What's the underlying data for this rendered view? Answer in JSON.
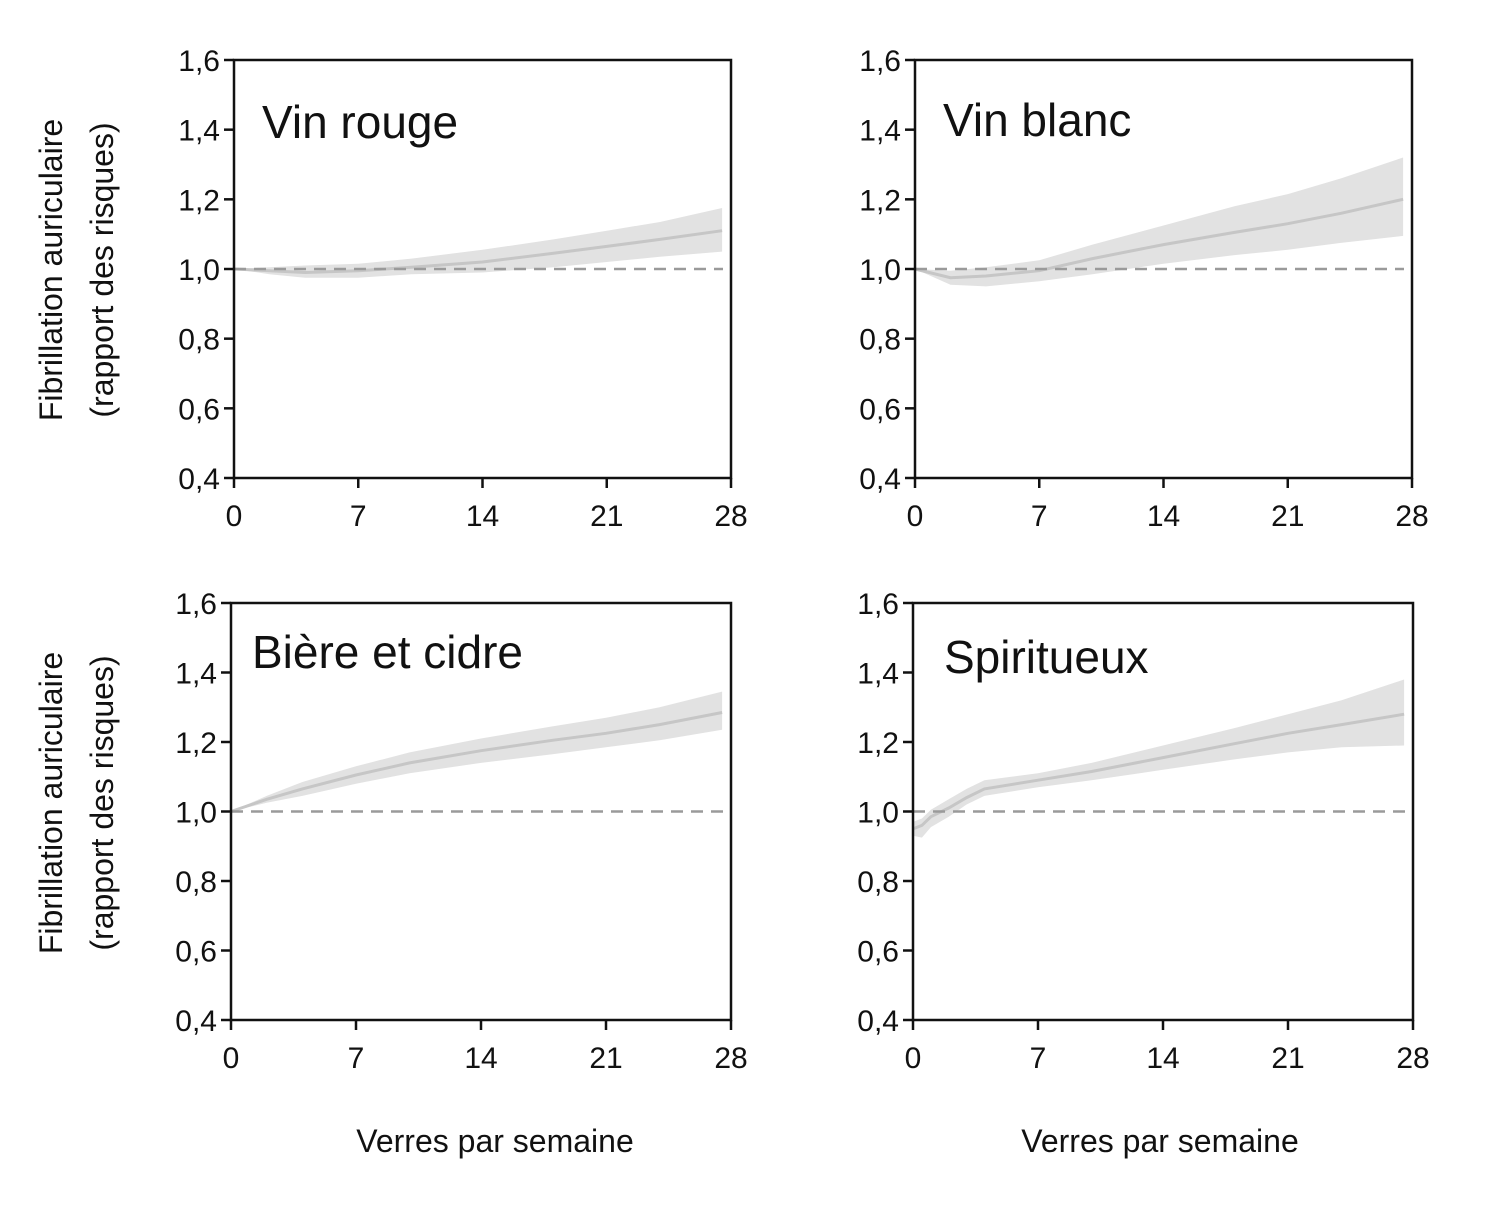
{
  "figure": {
    "x_axis_label": "Verres par semaine",
    "y_axis_label_line1": "Fibrillation auriculaire",
    "y_axis_label_line2": "(rapport des risques)"
  },
  "chart_data": [
    {
      "type": "line",
      "title": "Vin rouge",
      "xlim": [
        0,
        28
      ],
      "ylim": [
        0.4,
        1.6
      ],
      "x_ticks": [
        "0",
        "7",
        "14",
        "21",
        "28"
      ],
      "y_ticks": [
        "0,4",
        "0,6",
        "0,8",
        "1,0",
        "1,2",
        "1,4",
        "1,6"
      ],
      "reference_line": 1.0,
      "x": [
        0,
        2,
        4,
        7,
        10,
        14,
        18,
        21,
        24,
        27.5
      ],
      "y": [
        1.0,
        0.995,
        0.99,
        0.995,
        1.005,
        1.02,
        1.045,
        1.065,
        1.085,
        1.11
      ],
      "ci_lower": [
        1.0,
        0.985,
        0.975,
        0.975,
        0.985,
        0.99,
        1.005,
        1.02,
        1.035,
        1.05
      ],
      "ci_upper": [
        1.0,
        1.005,
        1.01,
        1.015,
        1.03,
        1.055,
        1.085,
        1.11,
        1.135,
        1.175
      ],
      "series": [
        {
          "values_key": "y",
          "color": "#c6c6c6"
        }
      ]
    },
    {
      "type": "line",
      "title": "Vin blanc",
      "xlim": [
        0,
        28
      ],
      "ylim": [
        0.4,
        1.6
      ],
      "x_ticks": [
        "0",
        "7",
        "14",
        "21",
        "28"
      ],
      "y_ticks": [
        "0,4",
        "0,6",
        "0,8",
        "1,0",
        "1,2",
        "1,4",
        "1,6"
      ],
      "reference_line": 1.0,
      "x": [
        0,
        2,
        4,
        7,
        10,
        14,
        18,
        21,
        24,
        27.5
      ],
      "y": [
        1.0,
        0.975,
        0.98,
        0.995,
        1.03,
        1.07,
        1.105,
        1.13,
        1.16,
        1.2
      ],
      "ci_lower": [
        1.0,
        0.955,
        0.95,
        0.965,
        0.985,
        1.015,
        1.04,
        1.055,
        1.075,
        1.095
      ],
      "ci_upper": [
        1.0,
        0.995,
        1.005,
        1.025,
        1.07,
        1.125,
        1.18,
        1.215,
        1.26,
        1.32
      ],
      "series": [
        {
          "values_key": "y",
          "color": "#c6c6c6"
        }
      ]
    },
    {
      "type": "line",
      "title": "Bière et cidre",
      "xlim": [
        0,
        28
      ],
      "ylim": [
        0.4,
        1.6
      ],
      "x_ticks": [
        "0",
        "7",
        "14",
        "21",
        "28"
      ],
      "y_ticks": [
        "0,4",
        "0,6",
        "0,8",
        "1,0",
        "1,2",
        "1,4",
        "1,6"
      ],
      "reference_line": 1.0,
      "x": [
        0,
        2,
        4,
        7,
        10,
        14,
        18,
        21,
        24,
        27.5
      ],
      "y": [
        1.0,
        1.035,
        1.065,
        1.105,
        1.14,
        1.175,
        1.205,
        1.225,
        1.25,
        1.285
      ],
      "ci_lower": [
        1.0,
        1.025,
        1.045,
        1.08,
        1.11,
        1.14,
        1.165,
        1.185,
        1.205,
        1.235
      ],
      "ci_upper": [
        1.0,
        1.045,
        1.085,
        1.13,
        1.17,
        1.21,
        1.245,
        1.27,
        1.3,
        1.345
      ],
      "series": [
        {
          "values_key": "y",
          "color": "#c6c6c6"
        }
      ]
    },
    {
      "type": "line",
      "title": "Spiritueux",
      "xlim": [
        0,
        28
      ],
      "ylim": [
        0.4,
        1.6
      ],
      "x_ticks": [
        "0",
        "7",
        "14",
        "21",
        "28"
      ],
      "y_ticks": [
        "0,4",
        "0,6",
        "0,8",
        "1,0",
        "1,2",
        "1,4",
        "1,6"
      ],
      "reference_line": 1.0,
      "x": [
        0,
        0.5,
        1,
        2,
        3,
        4,
        7,
        10,
        14,
        18,
        21,
        24,
        27.5
      ],
      "y": [
        0.95,
        0.96,
        0.985,
        1.01,
        1.04,
        1.065,
        1.09,
        1.115,
        1.155,
        1.195,
        1.225,
        1.25,
        1.28
      ],
      "ci_lower": [
        0.93,
        0.925,
        0.955,
        0.985,
        1.02,
        1.045,
        1.07,
        1.09,
        1.12,
        1.15,
        1.17,
        1.185,
        1.19
      ],
      "ci_upper": [
        0.97,
        0.98,
        1.005,
        1.035,
        1.065,
        1.09,
        1.11,
        1.14,
        1.19,
        1.24,
        1.28,
        1.32,
        1.38
      ],
      "series": [
        {
          "values_key": "y",
          "color": "#c6c6c6"
        }
      ]
    }
  ]
}
